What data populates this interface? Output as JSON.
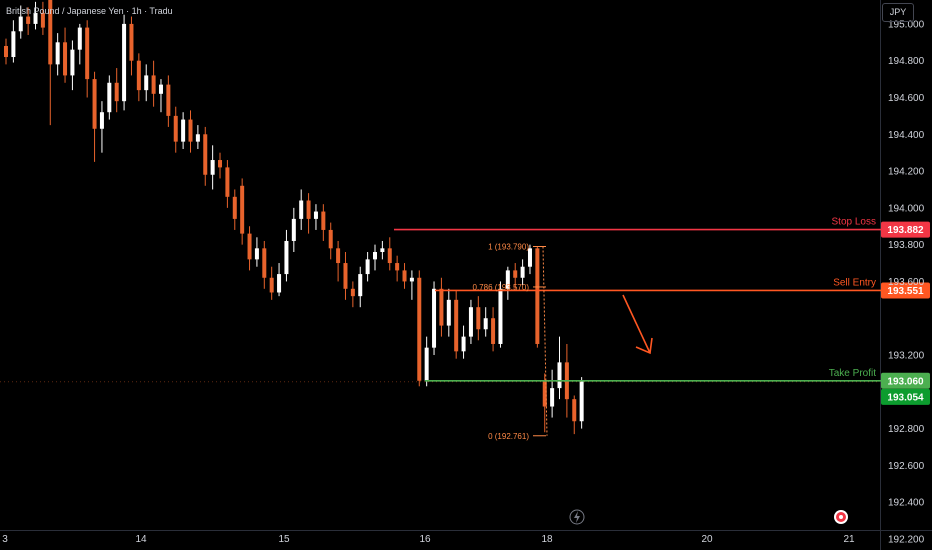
{
  "header": {
    "title": "British Pound / Japanese Yen · 1h · Tradu",
    "currency": "JPY"
  },
  "colors": {
    "up": "#ffffff",
    "down": "#e8632c",
    "stop_loss": "#f23645",
    "sell_entry": "#ff5722",
    "take_profit": "#4caf50",
    "fib": "#ff8a47",
    "grid_text": "#d1d4dc",
    "last_price": "#0c9c2e"
  },
  "chart_data": {
    "type": "candlestick",
    "title": "British Pound / Japanese Yen · 1h · Tradu",
    "y_axis_ticks": [
      "195.000",
      "194.800",
      "194.600",
      "194.400",
      "194.200",
      "194.000",
      "193.800",
      "193.600",
      "193.200",
      "192.800",
      "192.600",
      "192.400",
      "192.200"
    ],
    "x_axis_ticks": [
      "3",
      "14",
      "15",
      "16",
      "18",
      "20",
      "21"
    ],
    "ylim": [
      192.14,
      195.13
    ],
    "levels": [
      {
        "name": "Stop Loss",
        "price": 193.882,
        "label": "193.882"
      },
      {
        "name": "Sell Entry",
        "price": 193.551,
        "label": "193.551"
      },
      {
        "name": "Take Profit",
        "price": 193.06,
        "label": "193.060"
      }
    ],
    "last_price": {
      "price": 193.054,
      "label": "193.054"
    },
    "fibonacci": [
      {
        "level": "1",
        "price": 193.79,
        "label": "1 (193.790)"
      },
      {
        "level": "0.786",
        "price": 193.57,
        "label": "0.786 (193.570)"
      },
      {
        "level": "0",
        "price": 192.761,
        "label": "0 (192.761)"
      }
    ],
    "candles": [
      [
        194.88,
        194.82,
        194.92,
        194.78
      ],
      [
        194.82,
        194.96,
        195.02,
        194.79
      ],
      [
        194.96,
        195.04,
        195.1,
        194.92
      ],
      [
        195.04,
        195.0,
        195.09,
        194.94
      ],
      [
        195.0,
        195.06,
        195.12,
        194.97
      ],
      [
        195.06,
        194.98,
        195.12,
        194.94
      ],
      [
        195.18,
        194.78,
        195.22,
        194.45
      ],
      [
        194.78,
        194.9,
        194.95,
        194.72
      ],
      [
        194.9,
        194.72,
        194.98,
        194.68
      ],
      [
        194.72,
        194.86,
        194.91,
        194.64
      ],
      [
        194.86,
        194.98,
        195.0,
        194.78
      ],
      [
        194.98,
        194.7,
        195.02,
        194.6
      ],
      [
        194.7,
        194.43,
        194.74,
        194.25
      ],
      [
        194.43,
        194.52,
        194.58,
        194.3
      ],
      [
        194.52,
        194.68,
        194.72,
        194.48
      ],
      [
        194.68,
        194.58,
        194.76,
        194.52
      ],
      [
        194.58,
        195.0,
        195.05,
        194.53
      ],
      [
        195.0,
        194.8,
        195.04,
        194.72
      ],
      [
        194.8,
        194.64,
        194.84,
        194.58
      ],
      [
        194.64,
        194.72,
        194.78,
        194.58
      ],
      [
        194.72,
        194.62,
        194.8,
        194.55
      ],
      [
        194.62,
        194.67,
        194.7,
        194.52
      ],
      [
        194.67,
        194.5,
        194.72,
        194.44
      ],
      [
        194.5,
        194.36,
        194.55,
        194.3
      ],
      [
        194.36,
        194.48,
        194.52,
        194.32
      ],
      [
        194.48,
        194.36,
        194.53,
        194.3
      ],
      [
        194.36,
        194.4,
        194.45,
        194.32
      ],
      [
        194.4,
        194.18,
        194.44,
        194.12
      ],
      [
        194.18,
        194.26,
        194.34,
        194.1
      ],
      [
        194.26,
        194.22,
        194.3,
        194.16
      ],
      [
        194.22,
        194.06,
        194.26,
        194.0
      ],
      [
        194.06,
        193.94,
        194.1,
        193.88
      ],
      [
        194.12,
        193.86,
        194.16,
        193.8
      ],
      [
        193.86,
        193.72,
        193.9,
        193.66
      ],
      [
        193.72,
        193.78,
        193.84,
        193.68
      ],
      [
        193.78,
        193.62,
        193.82,
        193.56
      ],
      [
        193.62,
        193.54,
        193.68,
        193.5
      ],
      [
        193.54,
        193.64,
        193.7,
        193.52
      ],
      [
        193.64,
        193.82,
        193.88,
        193.6
      ],
      [
        193.82,
        193.94,
        194.0,
        193.76
      ],
      [
        193.94,
        194.04,
        194.1,
        193.88
      ],
      [
        194.04,
        193.94,
        194.08,
        193.86
      ],
      [
        193.94,
        193.98,
        194.02,
        193.88
      ],
      [
        193.98,
        193.88,
        194.02,
        193.82
      ],
      [
        193.88,
        193.78,
        193.92,
        193.72
      ],
      [
        193.78,
        193.7,
        193.82,
        193.6
      ],
      [
        193.7,
        193.56,
        193.76,
        193.5
      ],
      [
        193.56,
        193.52,
        193.6,
        193.46
      ],
      [
        193.52,
        193.64,
        193.68,
        193.46
      ],
      [
        193.64,
        193.72,
        193.76,
        193.6
      ],
      [
        193.72,
        193.76,
        193.8,
        193.66
      ],
      [
        193.76,
        193.78,
        193.82,
        193.72
      ],
      [
        193.78,
        193.7,
        193.84,
        193.66
      ],
      [
        193.7,
        193.66,
        193.74,
        193.6
      ],
      [
        193.66,
        193.6,
        193.7,
        193.56
      ],
      [
        193.6,
        193.62,
        193.66,
        193.5
      ],
      [
        193.62,
        193.06,
        193.66,
        193.03
      ],
      [
        193.06,
        193.24,
        193.3,
        193.03
      ],
      [
        193.24,
        193.56,
        193.6,
        193.2
      ],
      [
        193.56,
        193.36,
        193.62,
        193.3
      ],
      [
        193.36,
        193.5,
        193.56,
        193.3
      ],
      [
        193.5,
        193.22,
        193.55,
        193.18
      ],
      [
        193.22,
        193.3,
        193.36,
        193.18
      ],
      [
        193.3,
        193.46,
        193.5,
        193.26
      ],
      [
        193.46,
        193.34,
        193.52,
        193.28
      ],
      [
        193.34,
        193.4,
        193.46,
        193.3
      ],
      [
        193.4,
        193.26,
        193.46,
        193.22
      ],
      [
        193.26,
        193.56,
        193.6,
        193.24
      ],
      [
        193.56,
        193.66,
        193.68,
        193.5
      ],
      [
        193.66,
        193.62,
        193.7,
        193.56
      ],
      [
        193.62,
        193.68,
        193.72,
        193.58
      ],
      [
        193.68,
        193.78,
        193.8,
        193.64
      ],
      [
        193.78,
        193.26,
        193.79,
        193.24
      ],
      [
        193.06,
        192.92,
        193.1,
        192.78
      ],
      [
        192.92,
        193.02,
        193.12,
        192.86
      ],
      [
        193.02,
        193.16,
        193.3,
        192.96
      ],
      [
        193.16,
        192.96,
        193.26,
        192.86
      ],
      [
        192.96,
        192.84,
        192.98,
        192.77
      ],
      [
        192.84,
        193.06,
        193.08,
        192.8
      ]
    ]
  }
}
